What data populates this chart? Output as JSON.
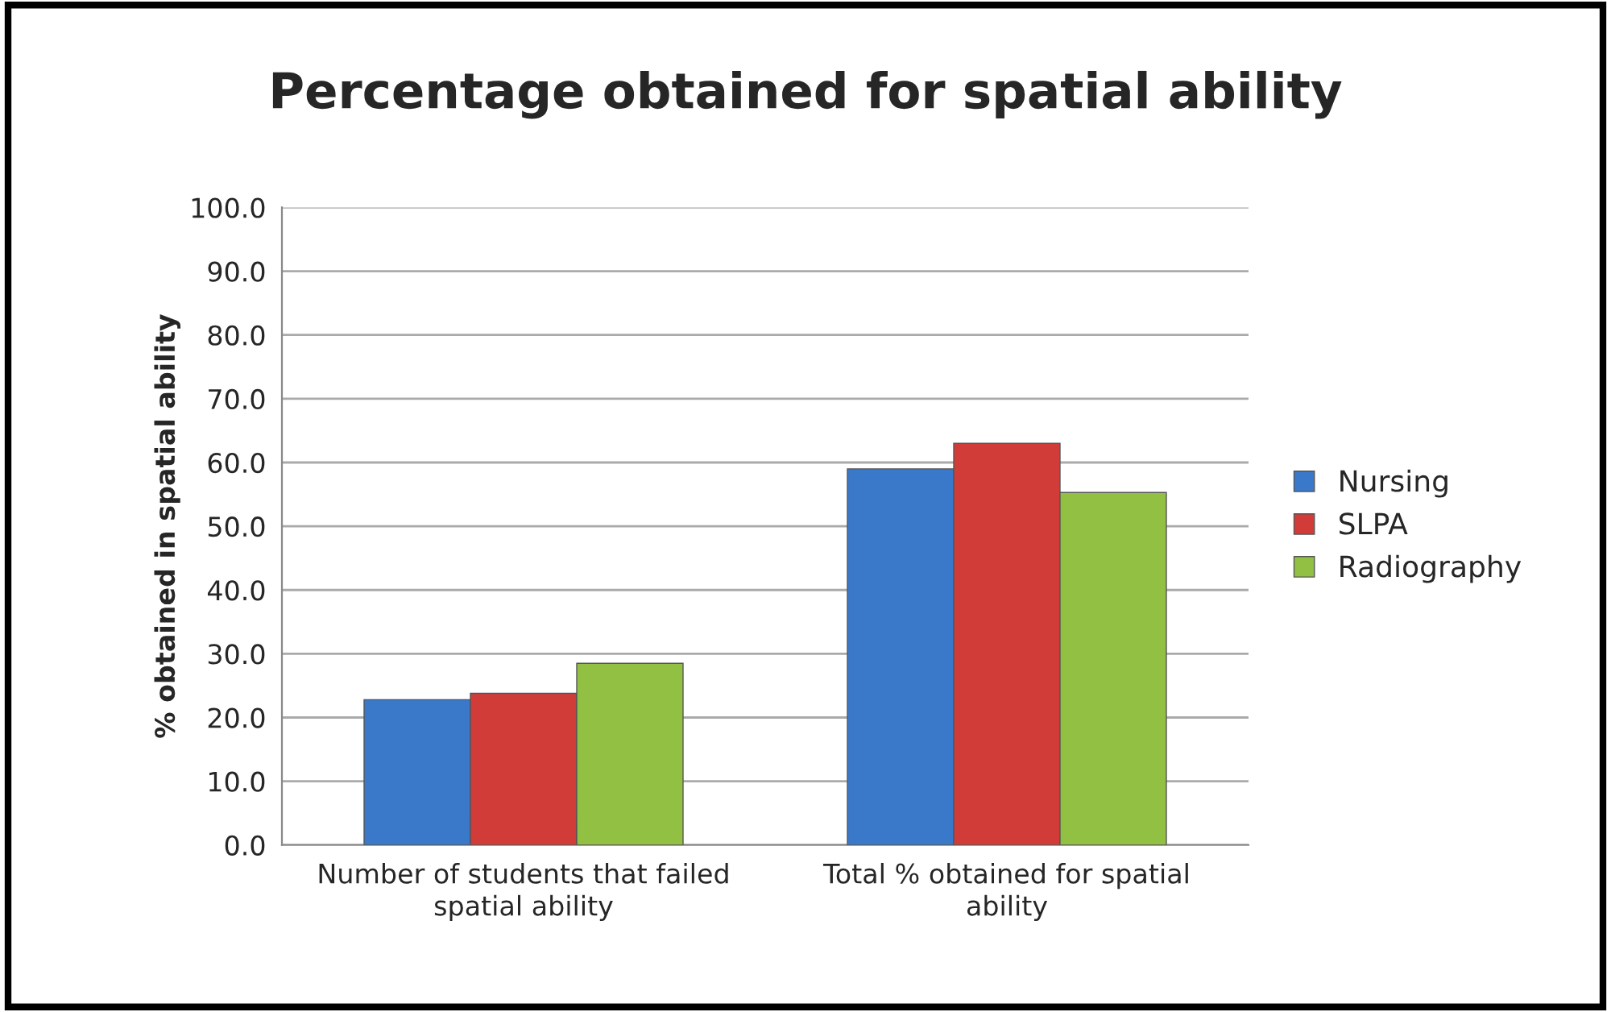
{
  "chart_data": {
    "type": "bar",
    "title": "Percentage obtained for spatial ability",
    "ylabel": "% obtained in spatial ability",
    "categories": [
      "Number of students that failed spatial ability",
      "Total % obtained for spatial ability"
    ],
    "series": [
      {
        "name": "Nursing",
        "color": "#3a78c9",
        "values": [
          22.8,
          59.0
        ]
      },
      {
        "name": "SLPA",
        "color": "#d23c38",
        "values": [
          23.8,
          63.0
        ]
      },
      {
        "name": "Radiography",
        "color": "#92c043",
        "values": [
          28.5,
          55.3
        ]
      }
    ],
    "ylim": [
      0,
      100
    ],
    "yticks": [
      {
        "value": 0,
        "label": "0.0"
      },
      {
        "value": 10,
        "label": "10.0"
      },
      {
        "value": 20,
        "label": "20.0"
      },
      {
        "value": 30,
        "label": "30.0"
      },
      {
        "value": 40,
        "label": "40.0"
      },
      {
        "value": 50,
        "label": "50.0"
      },
      {
        "value": 60,
        "label": "60.0"
      },
      {
        "value": 70,
        "label": "70.0"
      },
      {
        "value": 80,
        "label": "80.0"
      },
      {
        "value": 90,
        "label": "90.0"
      },
      {
        "value": 100,
        "label": "100.0"
      }
    ],
    "grid": "y",
    "legend": "right"
  }
}
